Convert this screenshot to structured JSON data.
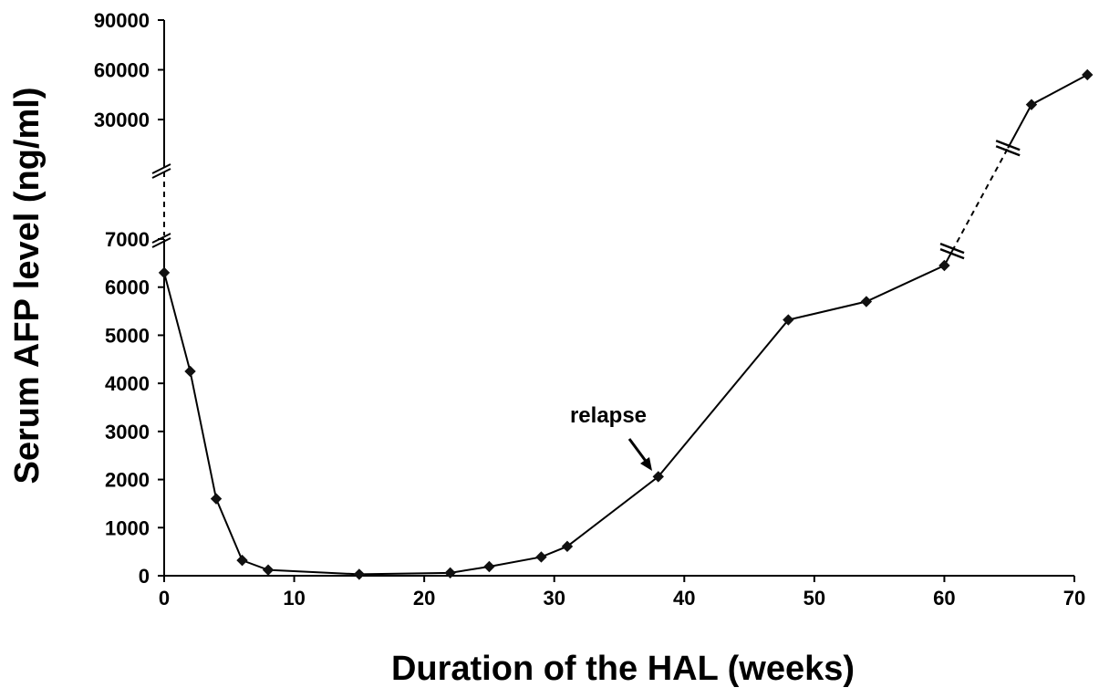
{
  "chart_data": {
    "type": "line",
    "xlabel": "Duration of the HAL (weeks)",
    "ylabel": "Serum AFP level (ng/ml)",
    "x_ticks": [
      "0",
      "10",
      "20",
      "30",
      "40",
      "50",
      "60",
      "70"
    ],
    "x_range": [
      0,
      70
    ],
    "y_ticks_lower": [
      "0",
      "1000",
      "2000",
      "3000",
      "4000",
      "5000",
      "6000",
      "7000"
    ],
    "y_range_lower": [
      0,
      7000
    ],
    "y_ticks_upper": [
      "30000",
      "60000",
      "90000"
    ],
    "y_range_upper": [
      30000,
      90000
    ],
    "axis_break": true,
    "grid": false,
    "series": [
      {
        "points": [
          {
            "x": 0,
            "y": 6300
          },
          {
            "x": 2,
            "y": 4250
          },
          {
            "x": 4,
            "y": 1600
          },
          {
            "x": 6,
            "y": 320
          },
          {
            "x": 8,
            "y": 120
          },
          {
            "x": 15,
            "y": 30
          },
          {
            "x": 22,
            "y": 60
          },
          {
            "x": 25,
            "y": 190
          },
          {
            "x": 29,
            "y": 390
          },
          {
            "x": 31,
            "y": 610
          },
          {
            "x": 38,
            "y": 2060
          },
          {
            "x": 48,
            "y": 5320
          },
          {
            "x": 54,
            "y": 5700
          },
          {
            "x": 60,
            "y": 6450
          }
        ]
      },
      {
        "points": [
          {
            "x": 66.7,
            "y": 39000
          },
          {
            "x": 71,
            "y": 57000
          }
        ]
      }
    ],
    "annotations": [
      {
        "text": "relapse",
        "target_x": 38,
        "target_y": 2060
      }
    ]
  }
}
